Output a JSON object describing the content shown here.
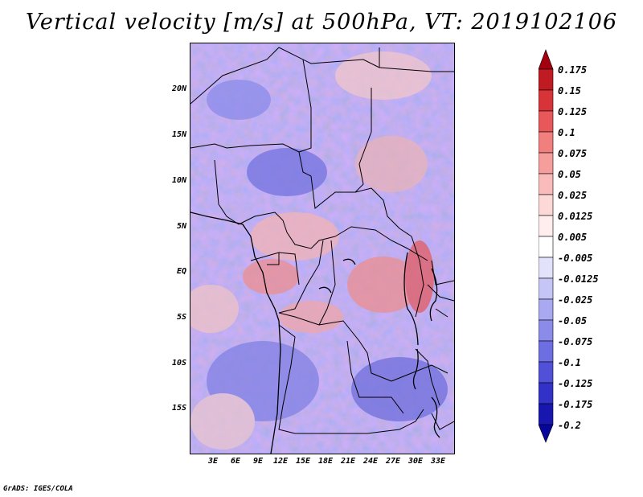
{
  "title": "Vertical velocity [m/s] at 500hPa, VT: 2019102106",
  "footer": "GrADS: IGES/COLA",
  "map": {
    "lat_range": [
      -20,
      25
    ],
    "lon_range": [
      0,
      35
    ],
    "lat_labels": [
      "20N",
      "15N",
      "10N",
      "5N",
      "EQ",
      "5S",
      "10S",
      "15S"
    ],
    "lon_labels": [
      "3E",
      "6E",
      "9E",
      "12E",
      "15E",
      "18E",
      "21E",
      "24E",
      "27E",
      "30E",
      "33E"
    ]
  },
  "colorbar": {
    "labels": [
      "0.175",
      "0.15",
      "0.125",
      "0.1",
      "0.075",
      "0.05",
      "0.025",
      "0.0125",
      "0.005",
      "-0.005",
      "-0.0125",
      "-0.025",
      "-0.05",
      "-0.075",
      "-0.1",
      "-0.125",
      "-0.175",
      "-0.2"
    ],
    "colors": [
      "#a5000f",
      "#c01a22",
      "#d9333a",
      "#e8575a",
      "#f07f7e",
      "#f59e9c",
      "#f9bcba",
      "#fcd8d7",
      "#ffeeed",
      "#ffffff",
      "#e2e2fb",
      "#c6c6f6",
      "#a9a9f1",
      "#8b8bea",
      "#6e6ee3",
      "#5050d8",
      "#3232c8",
      "#1717b0",
      "#06069a"
    ]
  }
}
